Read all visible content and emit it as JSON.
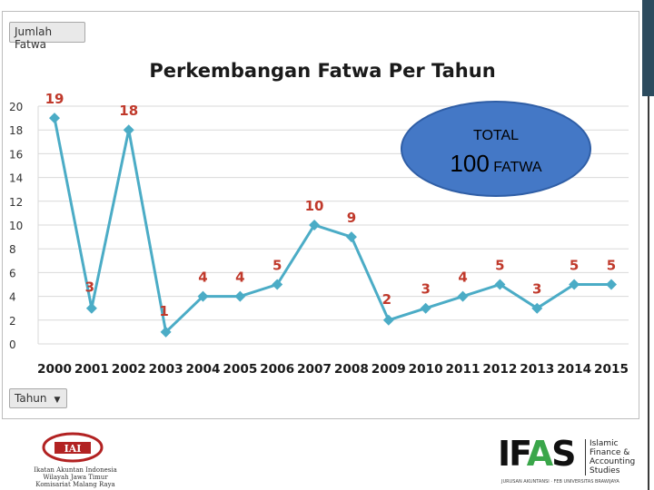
{
  "field_buttons": {
    "values_field": "Jumlah Fatwa",
    "category_field": "Tahun"
  },
  "colors": {
    "line": "#4bacc6",
    "data_label": "#c0392b",
    "bubble": "#4478c6"
  },
  "chart_data": {
    "type": "line",
    "title": "Perkembangan Fatwa Per Tahun",
    "xlabel": "",
    "ylabel": "",
    "categories": [
      "2000",
      "2001",
      "2002",
      "2003",
      "2004",
      "2005",
      "2006",
      "2007",
      "2008",
      "2009",
      "2010",
      "2011",
      "2012",
      "2013",
      "2014",
      "2015"
    ],
    "series": [
      {
        "values": [
          19,
          3,
          18,
          1,
          4,
          4,
          5,
          10,
          9,
          2,
          3,
          4,
          5,
          3,
          5,
          5
        ]
      }
    ],
    "ylim": [
      0,
      20
    ],
    "yticks": [
      0,
      2,
      4,
      6,
      8,
      10,
      12,
      14,
      16,
      18,
      20
    ],
    "grid": "horizontal",
    "marker": "diamond",
    "data_labels": true
  },
  "annotation": {
    "label": "TOTAL",
    "value": "100",
    "unit": "FATWA"
  },
  "logos": {
    "left_org_lines": [
      "Ikatan Akuntan Indonesia",
      "Wilayah Jawa Timur",
      "Komisariat Malang Raya"
    ],
    "left_mark": "IAI",
    "right_word_prefix": "IF",
    "right_word_accent": "A",
    "right_word_suffix": "S",
    "right_tagline": [
      "Islamic",
      "Finance &",
      "Accounting",
      "Studies"
    ],
    "right_subline": "JURUSAN AKUNTANSI · FEB UNIVERSITAS BRAWIJAYA"
  }
}
